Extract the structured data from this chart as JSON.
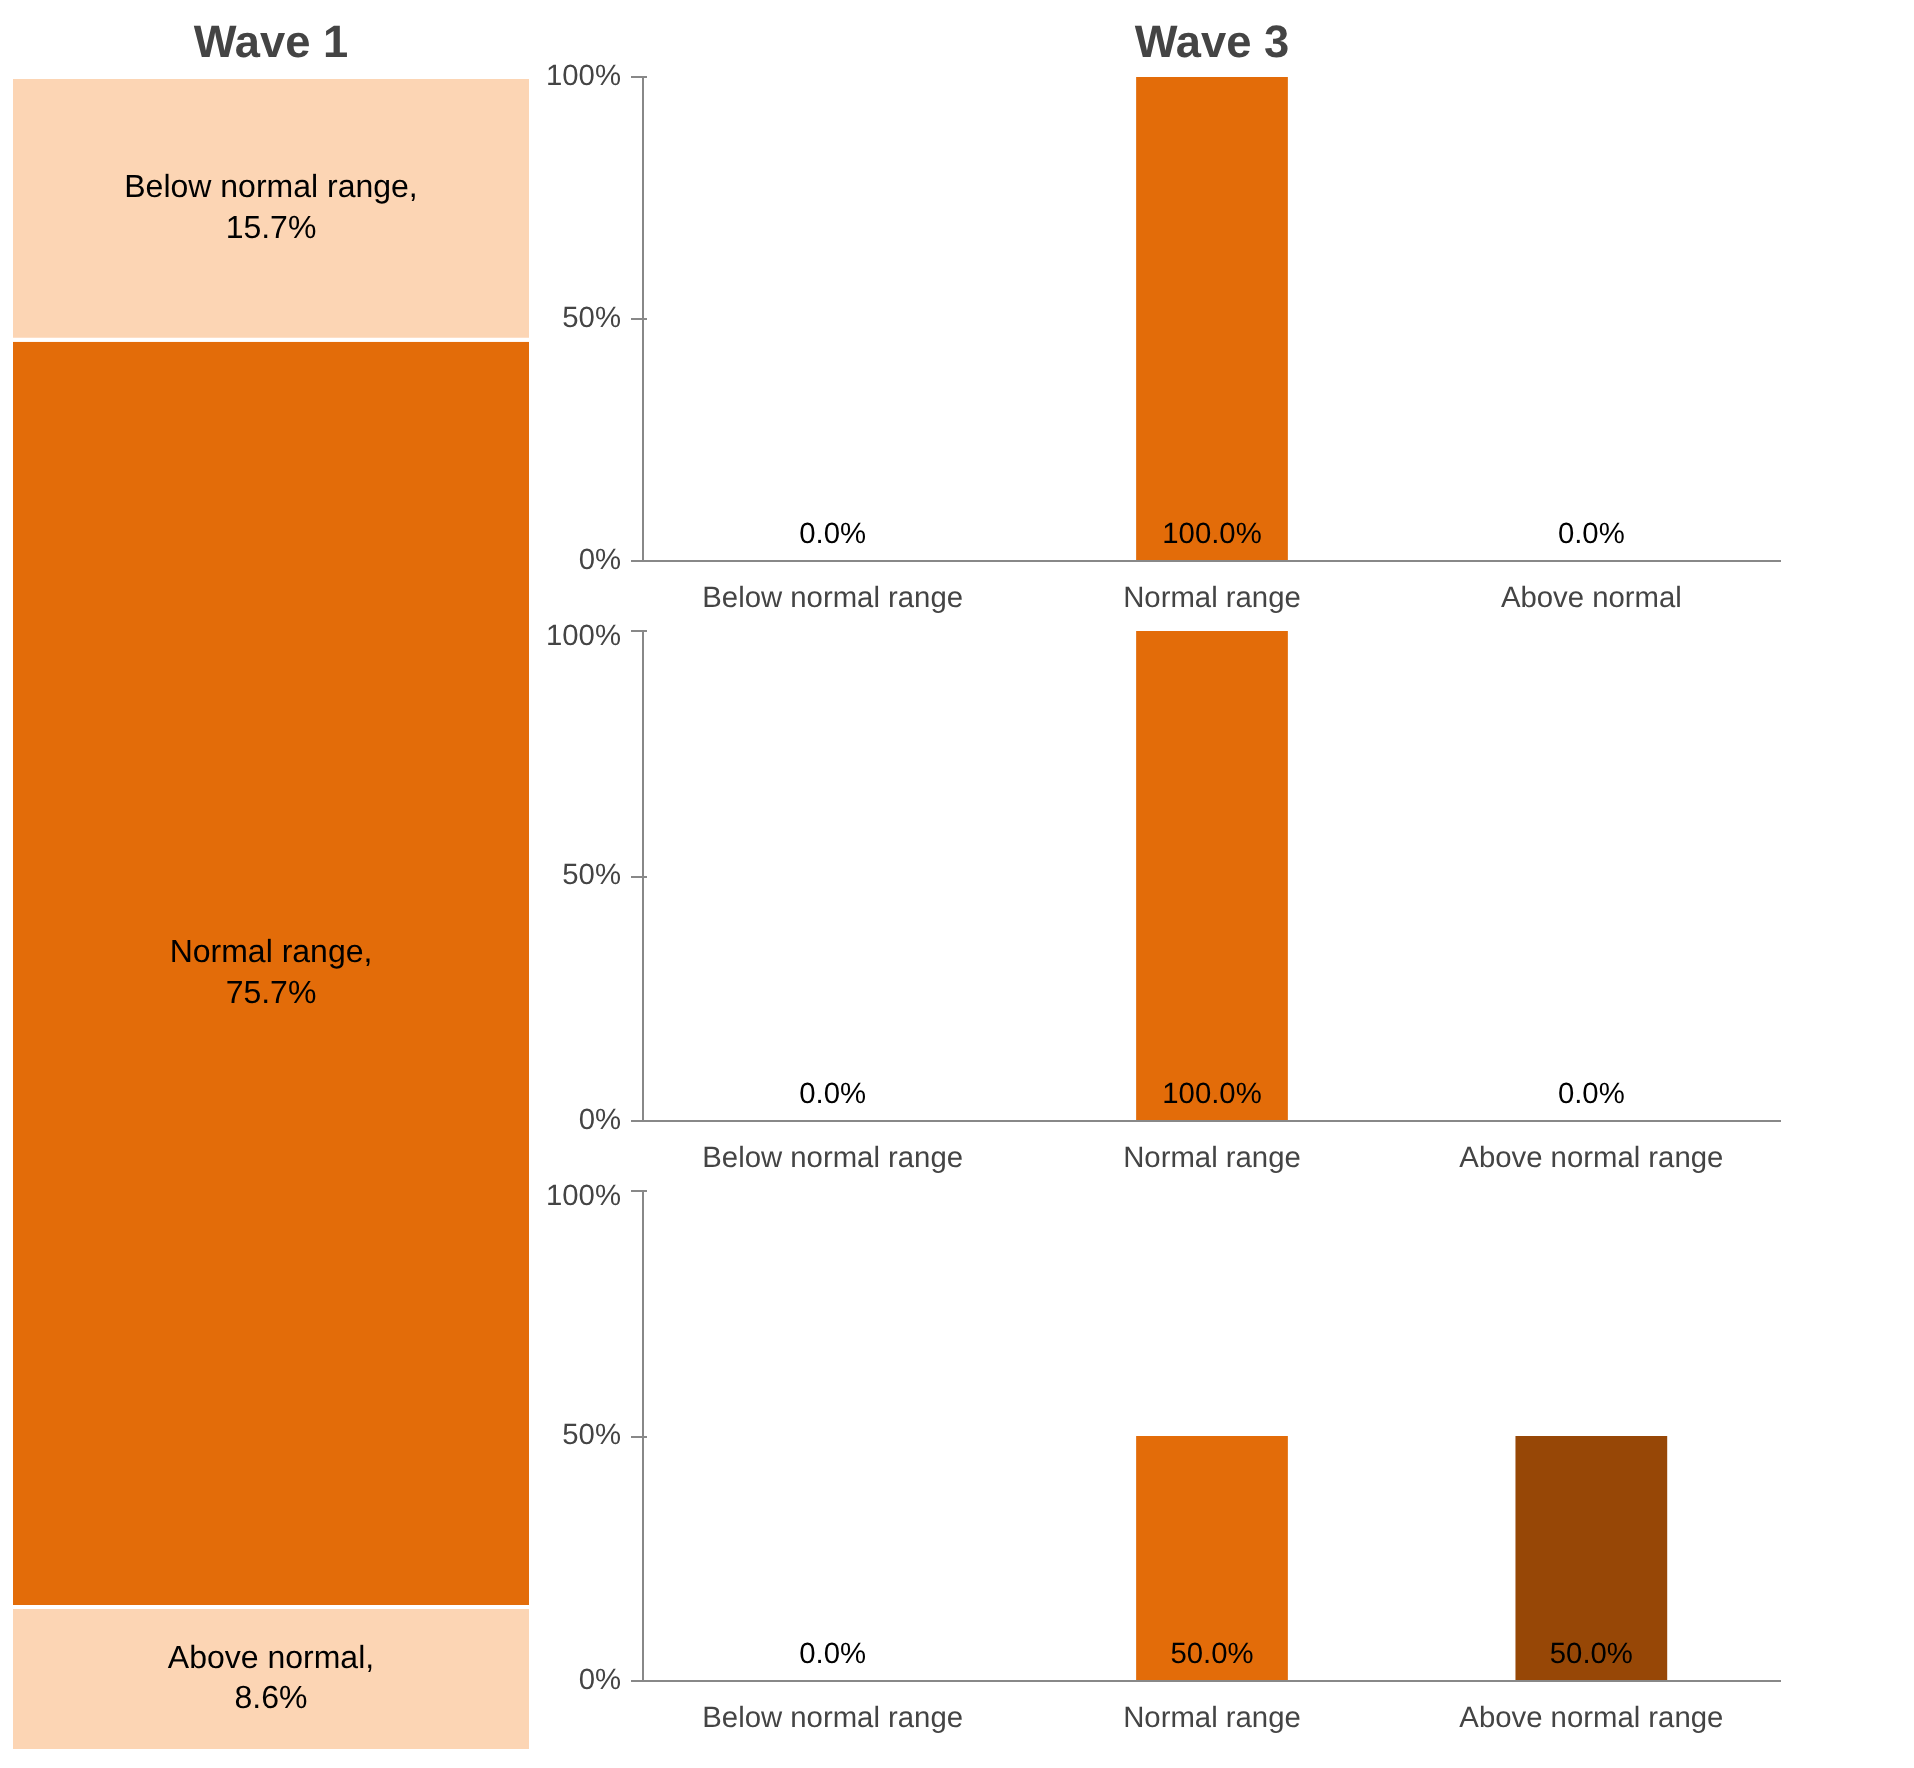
{
  "chart_data": [
    {
      "type": "bar",
      "title": "Wave 1",
      "stacked": true,
      "categories": [
        null
      ],
      "series": [
        {
          "name": "Above normal,",
          "color": "#fcd5b4",
          "values": [
            8.6
          ],
          "value_labels": [
            "8.6%"
          ]
        },
        {
          "name": "Normal range,",
          "color": "#e36c09",
          "values": [
            75.7
          ],
          "value_labels": [
            "75.7%"
          ]
        },
        {
          "name": "Below normal range,",
          "color": "#fcd5b4",
          "values": [
            15.7
          ],
          "value_labels": [
            "15.7%"
          ]
        }
      ]
    },
    {
      "type": "bar",
      "title": "Wave 3",
      "categories": [
        "Below normal range",
        "Normal range",
        "Above normal"
      ],
      "values": [
        0,
        100,
        0
      ],
      "colors": [
        "#e36c09",
        "#e36c09",
        "#e36c09"
      ],
      "value_labels": [
        "0.0%",
        "100.0%",
        "0.0%"
      ],
      "ylim": [
        0,
        100
      ],
      "yticks": [
        {
          "value": 0,
          "label": "0%"
        },
        {
          "value": 50,
          "label": "50%"
        },
        {
          "value": 100,
          "label": "100%"
        }
      ]
    },
    {
      "type": "bar",
      "categories": [
        "Below normal range",
        "Normal range",
        "Above normal range"
      ],
      "values": [
        0,
        100,
        0
      ],
      "colors": [
        "#e36c09",
        "#e36c09",
        "#e36c09"
      ],
      "value_labels": [
        "0.0%",
        "100.0%",
        "0.0%"
      ],
      "ylim": [
        0,
        100
      ],
      "yticks": [
        {
          "value": 0,
          "label": "0%"
        },
        {
          "value": 50,
          "label": "50%"
        },
        {
          "value": 100,
          "label": "100%"
        }
      ]
    },
    {
      "type": "bar",
      "categories": [
        "Below normal range",
        "Normal range",
        "Above normal range"
      ],
      "values": [
        0,
        50,
        50
      ],
      "colors": [
        "#e36c09",
        "#e36c09",
        "#974706"
      ],
      "value_labels": [
        "0.0%",
        "50.0%",
        "50.0%"
      ],
      "ylim": [
        0,
        100
      ],
      "yticks": [
        {
          "value": 0,
          "label": "0%"
        },
        {
          "value": 50,
          "label": "50%"
        },
        {
          "value": 100,
          "label": "100%"
        }
      ]
    }
  ]
}
